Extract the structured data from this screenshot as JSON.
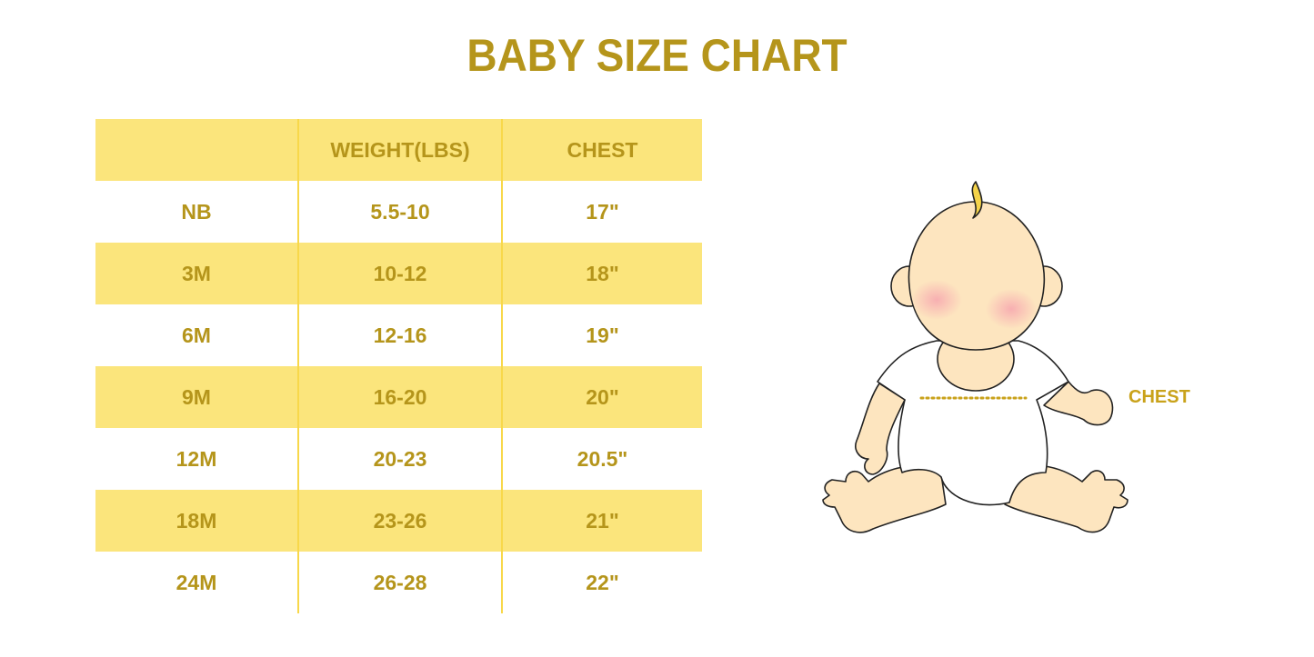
{
  "title": "BABY SIZE CHART",
  "table": {
    "headers": [
      "",
      "WEIGHT(LBS)",
      "CHEST"
    ],
    "rows": [
      [
        "NB",
        "5.5-10",
        "17\""
      ],
      [
        "3M",
        "10-12",
        "18\""
      ],
      [
        "6M",
        "12-16",
        "19\""
      ],
      [
        "9M",
        "16-20",
        "20\""
      ],
      [
        "12M",
        "20-23",
        "20.5\""
      ],
      [
        "18M",
        "23-26",
        "21\""
      ],
      [
        "24M",
        "26-28",
        "22\""
      ]
    ]
  },
  "illustration": {
    "chest_label": "CHEST"
  },
  "colors": {
    "text": "#b5951b",
    "stripe": "#fbe57c",
    "divider": "#f8d84a",
    "skin": "#fde5bf"
  }
}
